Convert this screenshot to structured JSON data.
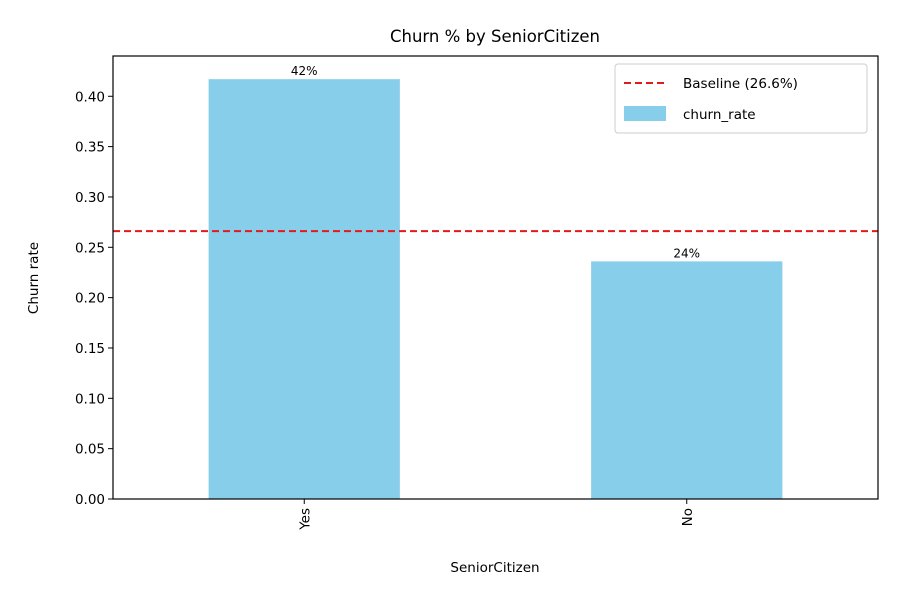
{
  "chart_data": {
    "type": "bar",
    "title": "Churn % by SeniorCitizen",
    "xlabel": "SeniorCitizen",
    "ylabel": "Churn rate",
    "categories": [
      "Yes",
      "No"
    ],
    "series": [
      {
        "name": "churn_rate",
        "values": [
          0.417,
          0.236
        ],
        "labels": [
          "42%",
          "24%"
        ],
        "color": "#87ceeb"
      }
    ],
    "baseline": {
      "value": 0.266,
      "label": "Baseline (26.6%)",
      "color": "#e31a1c",
      "style": "dashed"
    },
    "ylim": [
      0,
      0.44
    ],
    "yticks": [
      "0.00",
      "0.05",
      "0.10",
      "0.15",
      "0.20",
      "0.25",
      "0.30",
      "0.35",
      "0.40"
    ],
    "grid": false,
    "legend_position": "top-right"
  }
}
